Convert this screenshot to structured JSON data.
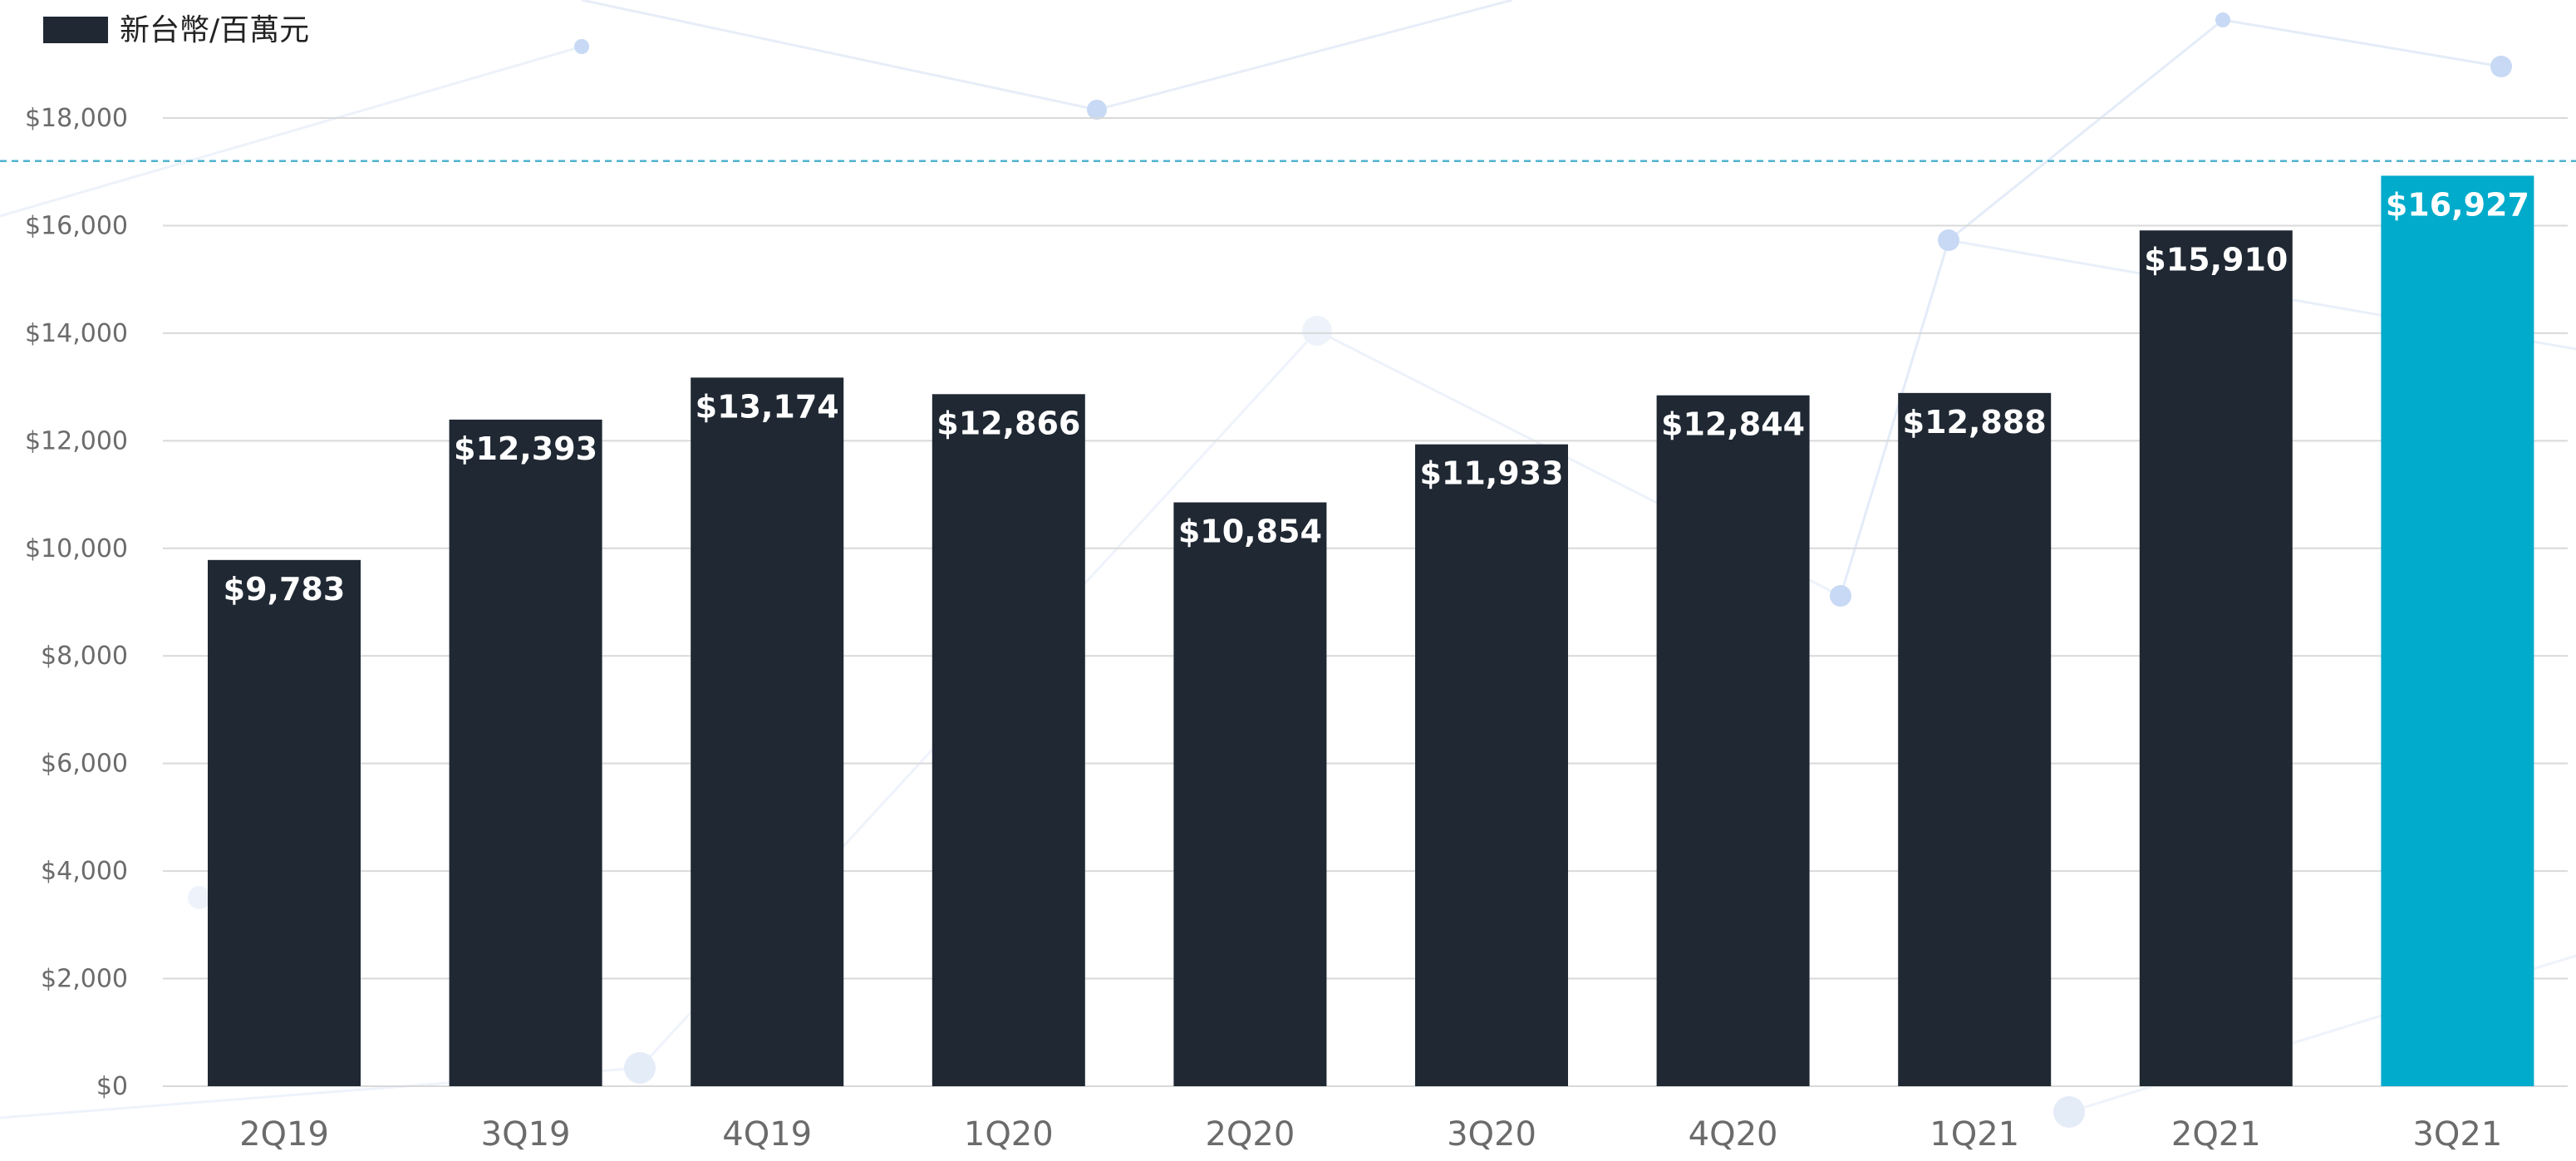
{
  "chart_data": {
    "type": "bar",
    "series": [
      {
        "name": "新台幣/百萬元",
        "values": [
          9783,
          12393,
          13174,
          12866,
          10854,
          11933,
          12844,
          12888,
          15910,
          16927
        ]
      }
    ],
    "categories": [
      "2Q19",
      "3Q19",
      "4Q19",
      "1Q20",
      "2Q20",
      "3Q20",
      "4Q20",
      "1Q21",
      "2Q21",
      "3Q21"
    ],
    "data_labels": [
      "$9,783",
      "$12,393",
      "$13,174",
      "$12,866",
      "$10,854",
      "$11,933",
      "$12,844",
      "$12,888",
      "$15,910",
      "$16,927"
    ],
    "ylim": [
      0,
      18000
    ],
    "yticks": [
      0,
      2000,
      4000,
      6000,
      8000,
      10000,
      12000,
      14000,
      16000,
      18000
    ],
    "ytick_labels": [
      "$0",
      "$2,000",
      "$4,000",
      "$6,000",
      "$8,000",
      "$10,000",
      "$12,000",
      "$14,000",
      "$16,000",
      "$18,000"
    ],
    "reference_line": 17200,
    "highlight_index": 9,
    "grid": true,
    "legend_position": "top-left",
    "colors": {
      "bar": "#1f2833",
      "highlight": "#00abcb",
      "grid": "#d9d9d9",
      "reference_line": "#4fb3cf"
    }
  }
}
